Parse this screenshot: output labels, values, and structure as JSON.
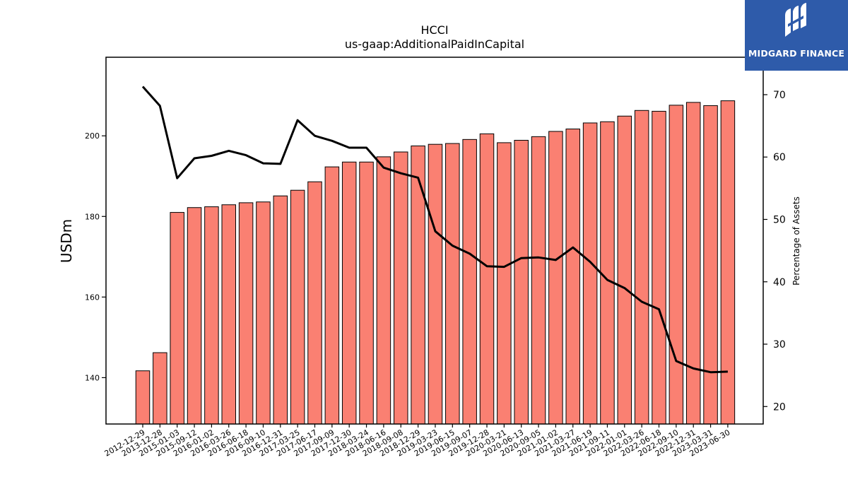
{
  "logo": {
    "text": "MIDGARD FINANCE",
    "bg_color": "#2E5BAA"
  },
  "chart_data": {
    "type": "bar",
    "title": "HCCI",
    "subtitle": "us-gaap:AdditionalPaidInCapital",
    "ylabel": "USDm",
    "y2label": "Percentage of Assets",
    "bar_color": "#FA8072",
    "line_color": "#000000",
    "ylim": [
      128.5,
      219.5
    ],
    "y2lim": [
      17.2,
      76.0
    ],
    "yticks": [
      140,
      160,
      180,
      200
    ],
    "y2ticks": [
      20,
      30,
      40,
      50,
      60,
      70
    ],
    "categories": [
      "2012-12-29",
      "2013-12-28",
      "2015-01-03",
      "2015-09-12",
      "2016-01-02",
      "2016-03-26",
      "2016-06-18",
      "2016-09-10",
      "2016-12-31",
      "2017-03-25",
      "2017-06-17",
      "2017-09-09",
      "2017-12-30",
      "2018-03-24",
      "2018-06-16",
      "2018-09-08",
      "2018-12-29",
      "2019-03-23",
      "2019-06-15",
      "2019-09-07",
      "2019-12-28",
      "2020-03-21",
      "2020-06-13",
      "2020-09-05",
      "2021-01-02",
      "2021-03-27",
      "2021-06-19",
      "2021-09-11",
      "2022-01-01",
      "2022-03-26",
      "2022-06-18",
      "2022-09-10",
      "2022-12-31",
      "2023-03-31",
      "2023-06-30"
    ],
    "series": [
      {
        "axis": "left",
        "kind": "bar",
        "values": [
          141.7,
          146.2,
          181.0,
          182.2,
          182.4,
          182.9,
          183.4,
          183.6,
          185.1,
          186.5,
          188.6,
          192.3,
          193.5,
          193.5,
          194.8,
          196.0,
          197.5,
          197.9,
          198.1,
          199.1,
          200.5,
          198.3,
          198.9,
          199.8,
          201.1,
          201.7,
          203.2,
          203.5,
          204.9,
          206.3,
          206.1,
          207.6,
          208.3,
          207.5,
          208.7
        ]
      },
      {
        "axis": "right",
        "kind": "line",
        "values": [
          71.3,
          68.2,
          56.6,
          59.8,
          60.2,
          61.0,
          60.3,
          59.0,
          58.9,
          65.9,
          63.4,
          62.6,
          61.5,
          61.5,
          58.3,
          57.4,
          56.7,
          48.1,
          45.8,
          44.5,
          42.5,
          42.4,
          43.8,
          43.9,
          43.5,
          45.5,
          43.2,
          40.3,
          39.0,
          36.8,
          35.6,
          27.3,
          26.1,
          25.5,
          25.6
        ]
      }
    ]
  }
}
